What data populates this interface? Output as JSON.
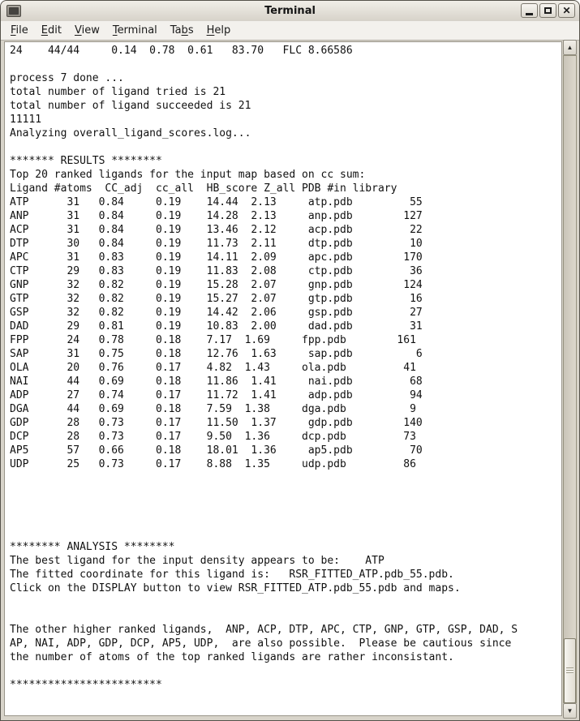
{
  "window": {
    "title": "Terminal"
  },
  "menubar": {
    "items": [
      {
        "pre": "",
        "key": "F",
        "post": "ile"
      },
      {
        "pre": "",
        "key": "E",
        "post": "dit"
      },
      {
        "pre": "",
        "key": "V",
        "post": "iew"
      },
      {
        "pre": "",
        "key": "T",
        "post": "erminal"
      },
      {
        "pre": "Ta",
        "key": "b",
        "post": "s"
      },
      {
        "pre": "",
        "key": "H",
        "post": "elp"
      }
    ]
  },
  "terminal": {
    "lines": [
      "24    44/44     0.14  0.78  0.61   83.70   FLC 8.66586",
      "",
      "process 7 done ...",
      "total number of ligand tried is 21",
      "total number of ligand succeeded is 21",
      "11111",
      "Analyzing overall_ligand_scores.log...",
      "",
      "******* RESULTS ********",
      "Top 20 ranked ligands for the input map based on cc sum:",
      "Ligand #atoms  CC_adj  cc_all  HB_score Z_all PDB #in library",
      "ATP      31   0.84     0.19    14.44  2.13     atp.pdb         55",
      "ANP      31   0.84     0.19    14.28  2.13     anp.pdb        127",
      "ACP      31   0.84     0.19    13.46  2.12     acp.pdb         22",
      "DTP      30   0.84     0.19    11.73  2.11     dtp.pdb         10",
      "APC      31   0.83     0.19    14.11  2.09     apc.pdb        170",
      "CTP      29   0.83     0.19    11.83  2.08     ctp.pdb         36",
      "GNP      32   0.82     0.19    15.28  2.07     gnp.pdb        124",
      "GTP      32   0.82     0.19    15.27  2.07     gtp.pdb         16",
      "GSP      32   0.82     0.19    14.42  2.06     gsp.pdb         27",
      "DAD      29   0.81     0.19    10.83  2.00     dad.pdb         31",
      "FPP      24   0.78     0.18    7.17  1.69     fpp.pdb        161",
      "SAP      31   0.75     0.18    12.76  1.63     sap.pdb          6",
      "OLA      20   0.76     0.17    4.82  1.43     ola.pdb         41",
      "NAI      44   0.69     0.18    11.86  1.41     nai.pdb         68",
      "ADP      27   0.74     0.17    11.72  1.41     adp.pdb         94",
      "DGA      44   0.69     0.18    7.59  1.38     dga.pdb          9",
      "GDP      28   0.73     0.17    11.50  1.37     gdp.pdb        140",
      "DCP      28   0.73     0.17    9.50  1.36     dcp.pdb         73",
      "AP5      57   0.66     0.18    18.01  1.36     ap5.pdb         70",
      "UDP      25   0.73     0.17    8.88  1.35     udp.pdb         86",
      "",
      "",
      "",
      "",
      "",
      "******** ANALYSIS ********",
      "The best ligand for the input density appears to be:    ATP",
      "The fitted coordinate for this ligand is:   RSR_FITTED_ATP.pdb_55.pdb.",
      "Click on the DISPLAY button to view RSR_FITTED_ATP.pdb_55.pdb and maps.",
      "",
      "",
      "The other higher ranked ligands,  ANP, ACP, DTP, APC, CTP, GNP, GTP, GSP, DAD, S",
      "AP, NAI, ADP, GDP, DCP, AP5, UDP,  are also possible.  Please be cautious since",
      "the number of atoms of the top ranked ligands are rather inconsistant.",
      "",
      "************************"
    ]
  },
  "results_table": {
    "title": "Top 20 ranked ligands for the input map based on cc sum:",
    "headers": [
      "Ligand",
      "#atoms",
      "CC_adj",
      "cc_all",
      "HB_score",
      "Z_all",
      "PDB",
      "#in library"
    ],
    "rows": [
      [
        "ATP",
        31,
        0.84,
        0.19,
        14.44,
        2.13,
        "atp.pdb",
        55
      ],
      [
        "ANP",
        31,
        0.84,
        0.19,
        14.28,
        2.13,
        "anp.pdb",
        127
      ],
      [
        "ACP",
        31,
        0.84,
        0.19,
        13.46,
        2.12,
        "acp.pdb",
        22
      ],
      [
        "DTP",
        30,
        0.84,
        0.19,
        11.73,
        2.11,
        "dtp.pdb",
        10
      ],
      [
        "APC",
        31,
        0.83,
        0.19,
        14.11,
        2.09,
        "apc.pdb",
        170
      ],
      [
        "CTP",
        29,
        0.83,
        0.19,
        11.83,
        2.08,
        "ctp.pdb",
        36
      ],
      [
        "GNP",
        32,
        0.82,
        0.19,
        15.28,
        2.07,
        "gnp.pdb",
        124
      ],
      [
        "GTP",
        32,
        0.82,
        0.19,
        15.27,
        2.07,
        "gtp.pdb",
        16
      ],
      [
        "GSP",
        32,
        0.82,
        0.19,
        14.42,
        2.06,
        "gsp.pdb",
        27
      ],
      [
        "DAD",
        29,
        0.81,
        0.19,
        10.83,
        2.0,
        "dad.pdb",
        31
      ],
      [
        "FPP",
        24,
        0.78,
        0.18,
        7.17,
        1.69,
        "fpp.pdb",
        161
      ],
      [
        "SAP",
        31,
        0.75,
        0.18,
        12.76,
        1.63,
        "sap.pdb",
        6
      ],
      [
        "OLA",
        20,
        0.76,
        0.17,
        4.82,
        1.43,
        "ola.pdb",
        41
      ],
      [
        "NAI",
        44,
        0.69,
        0.18,
        11.86,
        1.41,
        "nai.pdb",
        68
      ],
      [
        "ADP",
        27,
        0.74,
        0.17,
        11.72,
        1.41,
        "adp.pdb",
        94
      ],
      [
        "DGA",
        44,
        0.69,
        0.18,
        7.59,
        1.38,
        "dga.pdb",
        9
      ],
      [
        "GDP",
        28,
        0.73,
        0.17,
        11.5,
        1.37,
        "gdp.pdb",
        140
      ],
      [
        "DCP",
        28,
        0.73,
        0.17,
        9.5,
        1.36,
        "dcp.pdb",
        73
      ],
      [
        "AP5",
        57,
        0.66,
        0.18,
        18.01,
        1.36,
        "ap5.pdb",
        70
      ],
      [
        "UDP",
        25,
        0.73,
        0.17,
        8.88,
        1.35,
        "udp.pdb",
        86
      ]
    ]
  },
  "analysis": {
    "best_ligand": "ATP",
    "fitted_coordinate": "RSR_FITTED_ATP.pdb_55.pdb"
  },
  "colors": {
    "terminal_bg": "#ffffff",
    "terminal_text": "#111111",
    "frame": "#d8d4ca"
  }
}
